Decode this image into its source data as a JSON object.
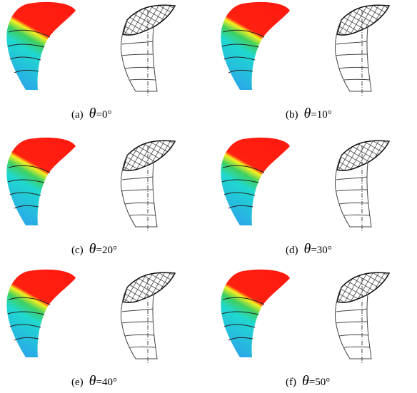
{
  "panels": [
    {
      "label": "(a)",
      "symbol": "θ",
      "angle": "=0°"
    },
    {
      "label": "(b)",
      "symbol": "θ",
      "angle": "=10°"
    },
    {
      "label": "(c)",
      "symbol": "θ",
      "angle": "=20°"
    },
    {
      "label": "(d)",
      "symbol": "θ",
      "angle": "=30°"
    },
    {
      "label": "(e)",
      "symbol": "θ",
      "angle": "=40°"
    },
    {
      "label": "(f)",
      "symbol": "θ",
      "angle": "=50°"
    }
  ]
}
